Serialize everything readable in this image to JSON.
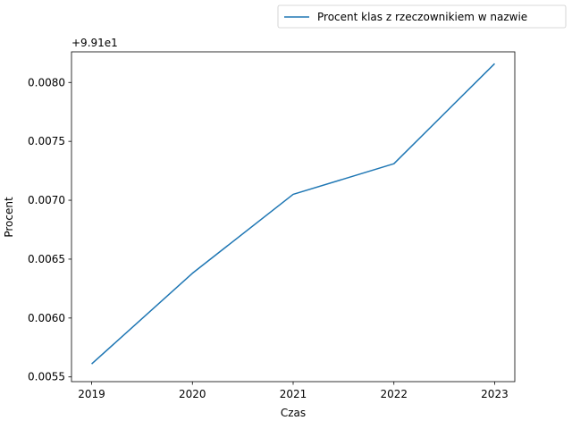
{
  "chart_data": {
    "type": "line",
    "title": "",
    "xlabel": "Czas",
    "ylabel": "Procent",
    "offset_label": "+9.91e1",
    "x": [
      2019,
      2020,
      2021,
      2022,
      2023
    ],
    "x_ticks": [
      "2019",
      "2020",
      "2021",
      "2022",
      "2023"
    ],
    "y_ticks": [
      "0.0055",
      "0.0060",
      "0.0065",
      "0.0070",
      "0.0075",
      "0.0080"
    ],
    "y_tick_values": [
      0.0055,
      0.006,
      0.0065,
      0.007,
      0.0075,
      0.008
    ],
    "ylim": [
      0.00546,
      0.00826
    ],
    "xlim": [
      2018.8,
      2023.2
    ],
    "series": [
      {
        "name": "Procent klas z rzeczownikiem w nazwie",
        "color": "#1f77b4",
        "values": [
          0.00561,
          0.00638,
          0.00705,
          0.00731,
          0.00816
        ]
      }
    ],
    "legend_position": "top-right, outside plot area",
    "grid": false
  }
}
